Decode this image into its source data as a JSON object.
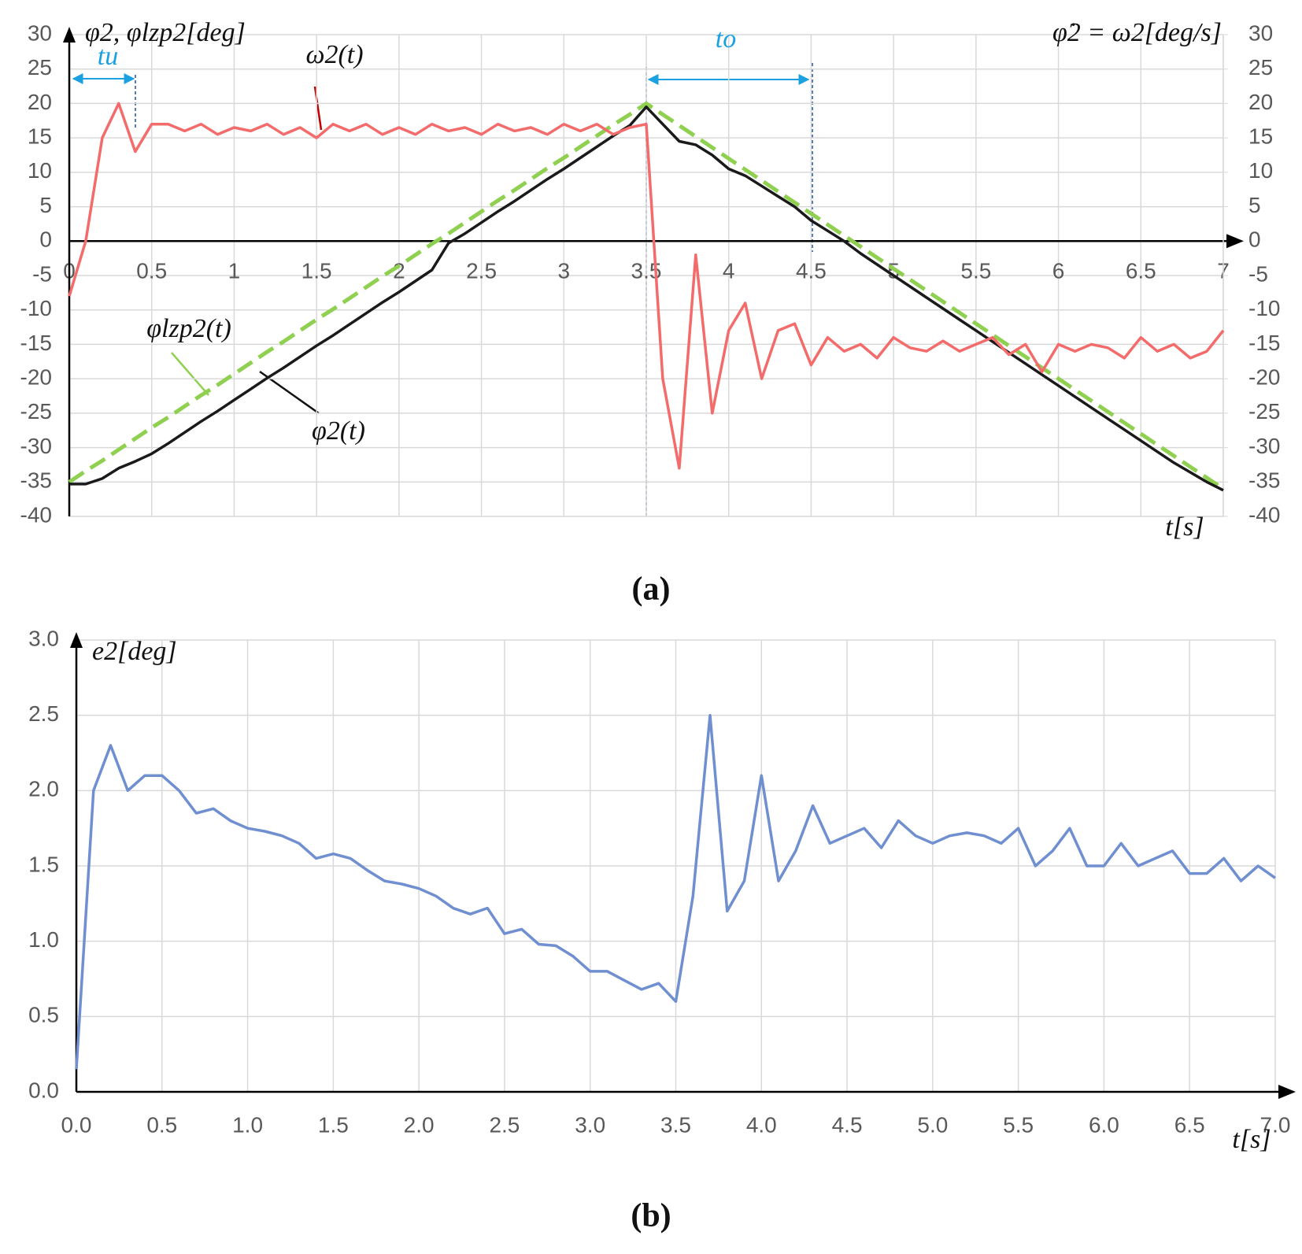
{
  "chart_data": [
    {
      "type": "line",
      "y_label": "φ2, φlzp2[deg]",
      "y2_label": "φ̇2 = ω2[deg/s]",
      "x_label": "t[s]",
      "caption": "(a)",
      "annotations": [
        "tu",
        "to"
      ],
      "grid": true,
      "xlim": [
        0,
        7
      ],
      "xticks": [
        0,
        0.5,
        1,
        1.5,
        2,
        2.5,
        3,
        3.5,
        4,
        4.5,
        5,
        5.5,
        6,
        6.5,
        7
      ],
      "ylim": [
        -40,
        30
      ],
      "yticks": [
        -40,
        -35,
        -30,
        -25,
        -20,
        -15,
        -10,
        -5,
        0,
        5,
        10,
        15,
        20,
        25,
        30
      ],
      "y2lim": [
        -40,
        30
      ],
      "y2ticks": [
        -40,
        -35,
        -30,
        -25,
        -20,
        -15,
        -10,
        -5,
        0,
        5,
        10,
        15,
        20,
        25,
        30
      ],
      "x": [
        0,
        0.1,
        0.2,
        0.3,
        0.4,
        0.5,
        0.6,
        0.7,
        0.8,
        0.9,
        1,
        1.1,
        1.2,
        1.3,
        1.4,
        1.5,
        1.6,
        1.7,
        1.8,
        1.9,
        2,
        2.1,
        2.2,
        2.3,
        2.4,
        2.5,
        2.6,
        2.7,
        2.8,
        2.9,
        3,
        3.1,
        3.2,
        3.3,
        3.4,
        3.5,
        3.6,
        3.7,
        3.8,
        3.9,
        4,
        4.1,
        4.2,
        4.3,
        4.4,
        4.5,
        4.6,
        4.7,
        4.8,
        4.9,
        5,
        5.1,
        5.2,
        5.3,
        5.4,
        5.5,
        5.6,
        5.7,
        5.8,
        5.9,
        6,
        6.1,
        6.2,
        6.3,
        6.4,
        6.5,
        6.6,
        6.7,
        6.8,
        6.9,
        7
      ],
      "series": [
        {
          "name": "φlzp2(t)",
          "color": "#8fd050",
          "style": "dashed",
          "values": [
            -35,
            -33.4,
            -31.9,
            -30.3,
            -28.7,
            -27.1,
            -25.6,
            -24,
            -22.4,
            -20.9,
            -19.3,
            -17.7,
            -16.1,
            -14.6,
            -13,
            -11.4,
            -9.9,
            -8.3,
            -6.7,
            -5.1,
            -3.6,
            -2,
            -0.4,
            1.1,
            2.7,
            4.3,
            5.9,
            7.4,
            9,
            10.6,
            12.1,
            13.7,
            15.3,
            16.9,
            18.4,
            20,
            18.4,
            16.8,
            15.2,
            13.6,
            12,
            10.4,
            8.8,
            7.2,
            5.6,
            4,
            2.4,
            0.8,
            -0.8,
            -2.4,
            -4,
            -5.6,
            -7.2,
            -8.8,
            -10.4,
            -12,
            -13.6,
            -15.2,
            -16.8,
            -18.4,
            -20,
            -21.6,
            -23.2,
            -24.8,
            -26.4,
            -28,
            -29.6,
            -31.2,
            -32.8,
            -34.4,
            -36
          ]
        },
        {
          "name": "φ2(t)",
          "color": "#1a1a1a",
          "style": "solid",
          "values": [
            -35.3,
            -35.3,
            -34.5,
            -33,
            -32,
            -30.9,
            -29.4,
            -27.8,
            -26.2,
            -24.7,
            -23.1,
            -21.5,
            -19.9,
            -18.4,
            -16.8,
            -15.2,
            -13.7,
            -12.1,
            -10.5,
            -8.9,
            -7.4,
            -5.8,
            -4.2,
            -0.3,
            1.1,
            2.7,
            4.3,
            5.8,
            7.4,
            9,
            10.5,
            12.1,
            13.7,
            15.3,
            16.8,
            19.5,
            17,
            14.5,
            14,
            12.5,
            10.5,
            9.5,
            8,
            6.5,
            5,
            3,
            1.5,
            0,
            -1.8,
            -3.4,
            -5,
            -6.6,
            -8.2,
            -9.8,
            -11.4,
            -13,
            -14.6,
            -16.2,
            -17.8,
            -19.4,
            -21,
            -22.6,
            -24.2,
            -25.8,
            -27.4,
            -29,
            -30.6,
            -32.2,
            -33.6,
            -35,
            -36.2
          ]
        },
        {
          "name": "ω2(t)",
          "color": "#f36b6b",
          "style": "solid",
          "axis": "y2",
          "values": [
            -8,
            0,
            15,
            20,
            13,
            17,
            17,
            16,
            17,
            15.5,
            16.5,
            16,
            17,
            15.5,
            16.5,
            15,
            17,
            16,
            17,
            15.5,
            16.5,
            15.5,
            17,
            16,
            16.5,
            15.5,
            17,
            16,
            16.5,
            15.5,
            17,
            16,
            17,
            15.5,
            16.5,
            17,
            -20,
            -33,
            -2,
            -25,
            -13,
            -9,
            -20,
            -13,
            -12,
            -18,
            -14,
            -16,
            -15,
            -17,
            -14,
            -15.5,
            -16,
            -14.5,
            -16,
            -15,
            -14,
            -16.5,
            -15,
            -19,
            -15,
            -16,
            -15,
            -15.5,
            -17,
            -14,
            -16,
            -15,
            -17,
            -16,
            -13
          ]
        }
      ]
    },
    {
      "type": "line",
      "y_label": "e2[deg]",
      "x_label": "t[s]",
      "caption": "(b)",
      "grid": true,
      "xlim": [
        0,
        7
      ],
      "xticks": [
        {
          "value": 0,
          "label": "0.0"
        },
        0.5,
        {
          "value": 1,
          "label": "1.0"
        },
        1.5,
        {
          "value": 2,
          "label": "2.0"
        },
        2.5,
        {
          "value": 3,
          "label": "3.0"
        },
        3.5,
        {
          "value": 4,
          "label": "4.0"
        },
        4.5,
        {
          "value": 5,
          "label": "5.0"
        },
        5.5,
        {
          "value": 6,
          "label": "6.0"
        },
        6.5,
        {
          "value": 7,
          "label": "7.0"
        }
      ],
      "ylim": [
        0,
        3
      ],
      "yticks": [
        {
          "value": 0,
          "label": "0.0"
        },
        0.5,
        {
          "value": 1,
          "label": "1.0"
        },
        1.5,
        {
          "value": 2,
          "label": "2.0"
        },
        2.5,
        {
          "value": 3,
          "label": "3.0"
        }
      ],
      "x": [
        0,
        0.1,
        0.2,
        0.3,
        0.4,
        0.5,
        0.6,
        0.7,
        0.8,
        0.9,
        1,
        1.1,
        1.2,
        1.3,
        1.4,
        1.5,
        1.6,
        1.7,
        1.8,
        1.9,
        2,
        2.1,
        2.2,
        2.3,
        2.4,
        2.5,
        2.6,
        2.7,
        2.8,
        2.9,
        3,
        3.1,
        3.2,
        3.3,
        3.4,
        3.5,
        3.6,
        3.7,
        3.8,
        3.9,
        4,
        4.1,
        4.2,
        4.3,
        4.4,
        4.5,
        4.6,
        4.7,
        4.8,
        4.9,
        5,
        5.1,
        5.2,
        5.3,
        5.4,
        5.5,
        5.6,
        5.7,
        5.8,
        5.9,
        6,
        6.1,
        6.2,
        6.3,
        6.4,
        6.5,
        6.6,
        6.7,
        6.8,
        6.9,
        7
      ],
      "series": [
        {
          "color": "#6f8fd0",
          "values": [
            0.15,
            2,
            2.3,
            2,
            2.1,
            2.1,
            2,
            1.85,
            1.88,
            1.8,
            1.75,
            1.73,
            1.7,
            1.65,
            1.55,
            1.58,
            1.55,
            1.47,
            1.4,
            1.38,
            1.35,
            1.3,
            1.22,
            1.18,
            1.22,
            1.05,
            1.08,
            0.98,
            0.97,
            0.9,
            0.8,
            0.8,
            0.74,
            0.68,
            0.72,
            0.6,
            1.3,
            2.5,
            1.2,
            1.4,
            2.1,
            1.4,
            1.6,
            1.9,
            1.65,
            1.7,
            1.75,
            1.62,
            1.8,
            1.7,
            1.65,
            1.7,
            1.72,
            1.7,
            1.65,
            1.75,
            1.5,
            1.6,
            1.75,
            1.5,
            1.5,
            1.65,
            1.5,
            1.55,
            1.6,
            1.45,
            1.45,
            1.55,
            1.4,
            1.5,
            1.42
          ]
        }
      ]
    }
  ]
}
